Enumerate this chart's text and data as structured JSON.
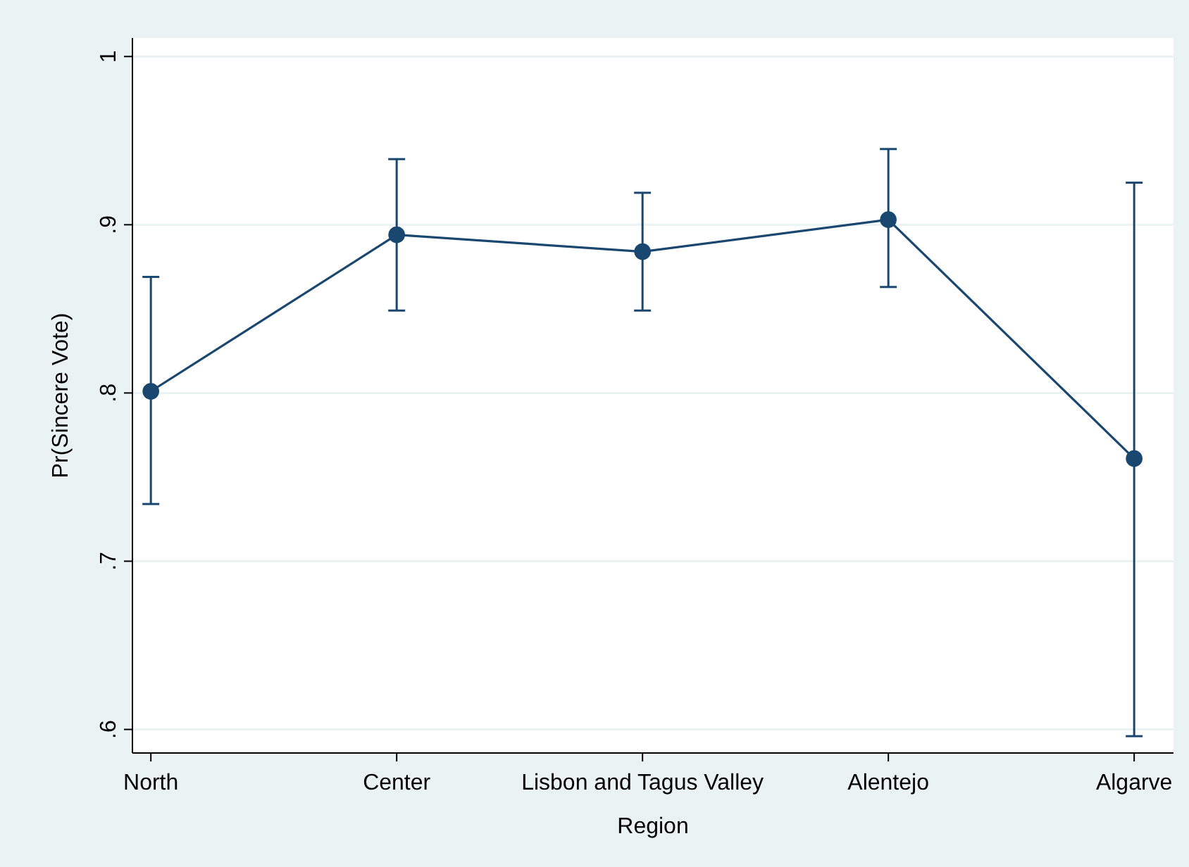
{
  "chart_data": {
    "type": "line",
    "xlabel": "Region",
    "ylabel": "Pr(Sincere Vote)",
    "categories": [
      "North",
      "Center",
      "Lisbon and Tagus Valley",
      "Alentejo",
      "Algarve"
    ],
    "series": [
      {
        "color": "#1a476f",
        "values": [
          0.801,
          0.894,
          0.884,
          0.903,
          0.761
        ],
        "errors": [
          [
            0.734,
            0.869
          ],
          [
            0.849,
            0.939
          ],
          [
            0.849,
            0.919
          ],
          [
            0.863,
            0.945
          ],
          [
            0.596,
            0.925
          ]
        ]
      }
    ],
    "ylim": [
      0.586,
      1.011
    ],
    "yticks": [
      {
        "value": 0.6,
        "label": ".6"
      },
      {
        "value": 0.7,
        "label": ".7"
      },
      {
        "value": 0.8,
        "label": ".8"
      },
      {
        "value": 0.9,
        "label": ".9"
      },
      {
        "value": 1,
        "label": "1"
      }
    ],
    "grid": "y",
    "marker": "circle",
    "line_style": "solid"
  }
}
